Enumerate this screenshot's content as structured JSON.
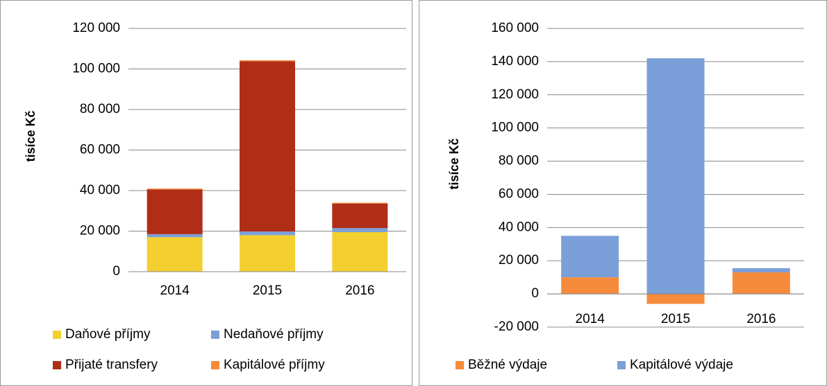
{
  "chart_data": [
    {
      "type": "stacked_bar",
      "ylabel": "tisíce Kč",
      "categories": [
        "2014",
        "2015",
        "2016"
      ],
      "series": [
        {
          "name": "Daňové příjmy",
          "color": "#f4cf30",
          "values": [
            17000,
            18000,
            19500
          ]
        },
        {
          "name": "Nedaňové příjmy",
          "color": "#7b9fd8",
          "values": [
            1500,
            1800,
            2000
          ]
        },
        {
          "name": "Přijaté transfery",
          "color": "#b02e17",
          "values": [
            22000,
            84000,
            12000
          ]
        },
        {
          "name": "Kapitálové příjmy",
          "color": "#f58a3a",
          "values": [
            500,
            500,
            500
          ]
        }
      ],
      "ylim": [
        0,
        120000
      ],
      "yticks": [
        0,
        {
          "value": 20000,
          "label": "20 000"
        },
        {
          "value": 40000,
          "label": "40 000"
        },
        {
          "value": 60000,
          "label": "60 000"
        },
        {
          "value": 80000,
          "label": "80 000"
        },
        {
          "value": 100000,
          "label": "100 000"
        },
        {
          "value": 120000,
          "label": "120 000"
        }
      ],
      "grid": true
    },
    {
      "type": "stacked_bar",
      "ylabel": "tisíce Kč",
      "categories": [
        "2014",
        "2015",
        "2016"
      ],
      "series": [
        {
          "name": "Běžné výdaje",
          "color": "#f68b3c",
          "values": [
            10000,
            -6000,
            13000
          ]
        },
        {
          "name": "Kapitálové výdaje",
          "color": "#7b9fd8",
          "values": [
            25000,
            142000,
            2500
          ]
        }
      ],
      "ylim": [
        -20000,
        160000
      ],
      "yticks": [
        {
          "value": -20000,
          "label": "-20 000"
        },
        0,
        {
          "value": 20000,
          "label": "20 000"
        },
        {
          "value": 40000,
          "label": "40 000"
        },
        {
          "value": 60000,
          "label": "60 000"
        },
        {
          "value": 80000,
          "label": "80 000"
        },
        {
          "value": 100000,
          "label": "100 000"
        },
        {
          "value": 120000,
          "label": "120 000"
        },
        {
          "value": 140000,
          "label": "140 000"
        },
        {
          "value": 160000,
          "label": "160 000"
        }
      ],
      "grid": true
    }
  ]
}
